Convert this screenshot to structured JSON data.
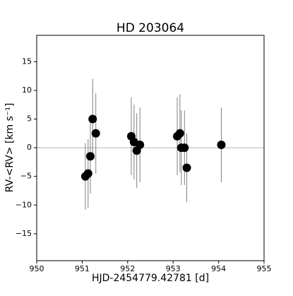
{
  "chart_data": {
    "type": "scatter",
    "title": "HD 203064",
    "xlabel": "HJD-2454779.42781 [d]",
    "ylabel": "RV-<RV> [km s⁻¹]",
    "x": [
      951.07,
      951.13,
      951.18,
      951.23,
      951.3,
      952.08,
      952.14,
      952.2,
      952.27,
      953.09,
      953.15,
      953.18,
      953.25,
      953.3,
      954.06
    ],
    "values": [
      -5.0,
      -4.5,
      -1.5,
      5.0,
      2.5,
      2.0,
      1.0,
      -0.5,
      0.5,
      2.0,
      2.5,
      0.0,
      0.0,
      -3.5,
      0.5
    ],
    "errors": [
      5.8,
      6.0,
      6.5,
      7.0,
      7.0,
      6.8,
      6.5,
      6.5,
      6.5,
      6.8,
      6.8,
      6.5,
      6.5,
      6.0,
      6.5
    ],
    "color": "#000000",
    "error_color": "#808080",
    "reference_line": 0,
    "xlim": [
      950,
      955
    ],
    "ylim": [
      -19.7,
      19.6
    ],
    "xticks": [
      950,
      951,
      952,
      953,
      954,
      955
    ],
    "yticks": [
      {
        "value": -15,
        "label": "−15"
      },
      {
        "value": -10,
        "label": "−10"
      },
      {
        "value": -5,
        "label": "−5"
      },
      0,
      5,
      10,
      15
    ]
  }
}
